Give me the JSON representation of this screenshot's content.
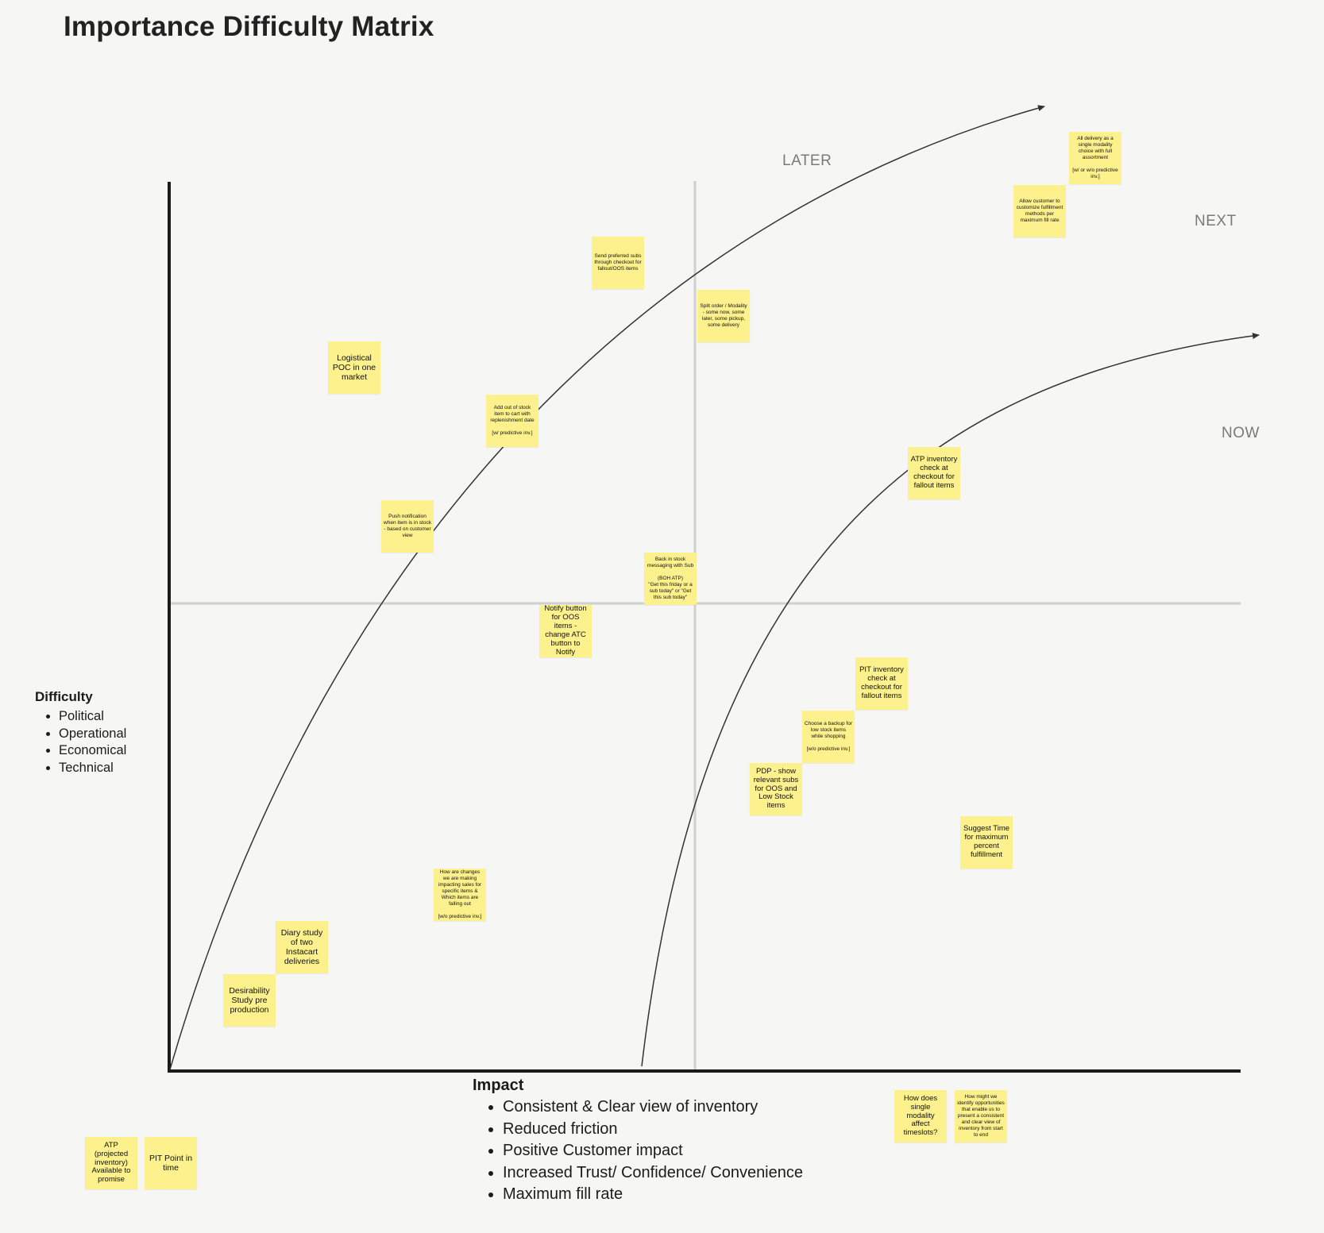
{
  "title": "Importance Difficulty Matrix",
  "zones": {
    "later": "LATER",
    "next": "NEXT",
    "now": "NOW"
  },
  "difficulty": {
    "title": "Difficulty",
    "items": [
      "Political",
      "Operational",
      "Economical",
      "Technical"
    ]
  },
  "impact": {
    "title": "Impact",
    "items": [
      "Consistent & Clear view of inventory",
      "Reduced friction",
      "Positive Customer impact",
      "Increased Trust/ Confidence/ Convenience",
      "Maximum fill rate"
    ]
  },
  "notes": {
    "all_delivery": "All delivery as a single modality choice with full assortment\n\n[w/ or w/o predictive inv.]",
    "allow_customer": "Allow customer to customize fulfillment methods per maximum fill rate",
    "send_preferred": "Send preferred subs through checkout for fallout/OOS items",
    "split_order": "Split order / Modality - some now, some later, some pickup, some delivery",
    "logistical_poc": "Logistical POC in one market",
    "add_out_of_stock": "Add out of stock item to cart with replenishment date\n\n[w/ predictive inv.]",
    "atp_inventory": "ATP inventory check at checkout for fallout items",
    "push_notification": "Push notification when item is in stock - based on customer view",
    "back_in_stock": "Back in stock messaging with Sub\n\n(BOH ATP)\n\"Get this friday or a sub today\" or \"Get this sub today\"",
    "notify_button": "Notify button for OOS items - change ATC button to Notify",
    "pit_inventory": "PIT inventory check at checkout for fallout items",
    "choose_backup": "Choose a backup for low stock items while shopping\n\n[w/o predictive inv.]",
    "pdp_show": "PDP - show relevant subs for OOS and Low Stock items",
    "suggest_time": "Suggest Time for maximum percent fulfillment",
    "how_are_changes": "How are changes we are making impacting sales for specific items & Which items are falling out\n\n[w/o predictive inv.]",
    "diary_study": "Diary study of two Instacart deliveries",
    "desirability_study": "Desirability Study pre production",
    "how_does_single": "How does single modality affect timeslots?",
    "how_might_we": "How might we identify opportunities that enable us to present a consistent and clear view of inventory from start to end",
    "atp_def": "ATP (projected inventory) Available to promise",
    "pit_def": "PIT Point in time"
  }
}
